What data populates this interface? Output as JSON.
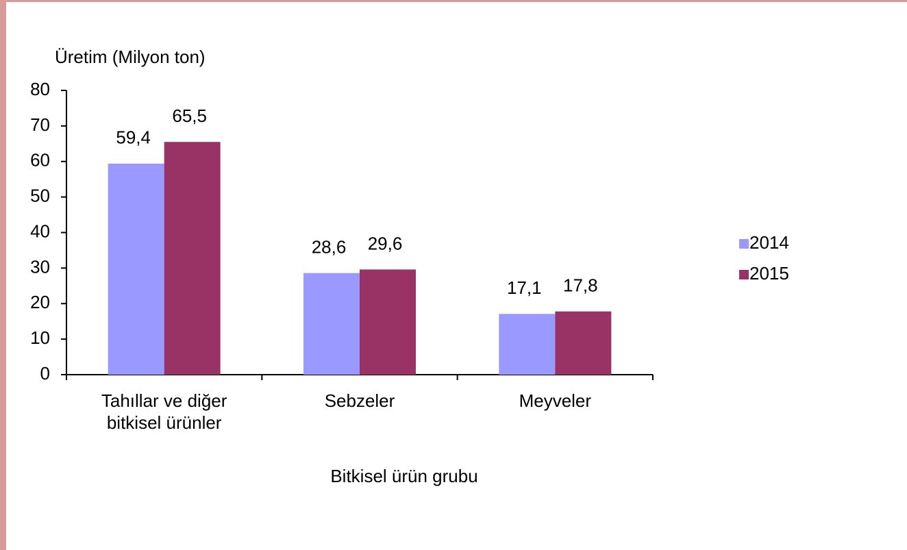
{
  "chart_data": {
    "type": "bar",
    "y_axis_label": "Üretim (Milyon ton)",
    "x_axis_label": "Bitkisel ürün grubu",
    "categories": [
      "Tahıllar ve diğer bitkisel ürünler",
      "Sebzeler",
      "Meyveler"
    ],
    "series": [
      {
        "name": "2014",
        "color": "#9999ff",
        "values": [
          59.4,
          28.6,
          17.1
        ],
        "value_labels": [
          "59,4",
          "28,6",
          "17,1"
        ]
      },
      {
        "name": "2015",
        "color": "#993366",
        "values": [
          65.5,
          29.6,
          17.8
        ],
        "value_labels": [
          "65,5",
          "29,6",
          "17,8"
        ]
      }
    ],
    "ylim": [
      0,
      80
    ],
    "yticks": [
      0,
      10,
      20,
      30,
      40,
      50,
      60,
      70,
      80
    ],
    "legend": "right"
  }
}
